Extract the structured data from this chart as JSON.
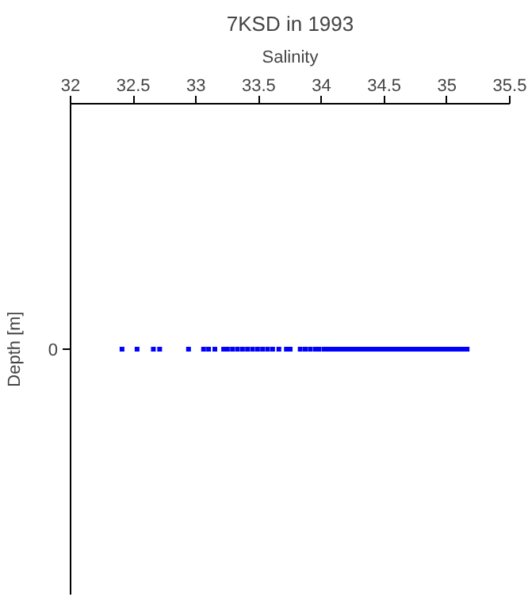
{
  "chart_data": {
    "type": "scatter",
    "orientation": "horizontal",
    "title": "7KSD in 1993",
    "xlabel": "Salinity",
    "ylabel": "Depth [m]",
    "categories": [
      "0"
    ],
    "series": [
      {
        "color": "#0000ff",
        "x": [
          "0",
          "0",
          "0",
          "0",
          "0",
          "0",
          "0",
          "0",
          "0",
          "0",
          "0",
          "0",
          "0",
          "0",
          "0",
          "0",
          "0",
          "0",
          "0",
          "0",
          "0",
          "0",
          "0",
          "0",
          "0",
          "0",
          "0",
          "0",
          "0",
          "0",
          "0",
          "0",
          "0",
          "0",
          "0",
          "0",
          "0",
          "0",
          "0",
          "0",
          "0",
          "0",
          "0",
          "0",
          "0",
          "0",
          "0",
          "0",
          "0",
          "0",
          "0",
          "0",
          "0",
          "0",
          "0",
          "0",
          "0",
          "0",
          "0",
          "0",
          "0",
          "0",
          "0",
          "0",
          "0",
          "0"
        ],
        "values": [
          32.41,
          32.53,
          32.66,
          32.71,
          32.94,
          33.06,
          33.1,
          33.15,
          33.22,
          33.25,
          33.29,
          33.33,
          33.37,
          33.41,
          33.45,
          33.49,
          33.53,
          33.57,
          33.61,
          33.66,
          33.72,
          33.75,
          33.83,
          33.87,
          33.91,
          33.95,
          33.98,
          34.02,
          34.05,
          34.08,
          34.11,
          34.14,
          34.17,
          34.2,
          34.23,
          34.26,
          34.29,
          34.32,
          34.35,
          34.38,
          34.41,
          34.44,
          34.47,
          34.5,
          34.53,
          34.56,
          34.59,
          34.62,
          34.65,
          34.68,
          34.71,
          34.74,
          34.77,
          34.8,
          34.83,
          34.86,
          34.89,
          34.92,
          34.95,
          34.98,
          35.01,
          35.04,
          35.07,
          35.1,
          35.13,
          35.16
        ]
      }
    ],
    "marker": "square",
    "xlim": [
      32,
      35.5
    ],
    "xticks": [
      32,
      32.5,
      33,
      33.5,
      34,
      34.5,
      35,
      35.5
    ],
    "grid": false
  }
}
